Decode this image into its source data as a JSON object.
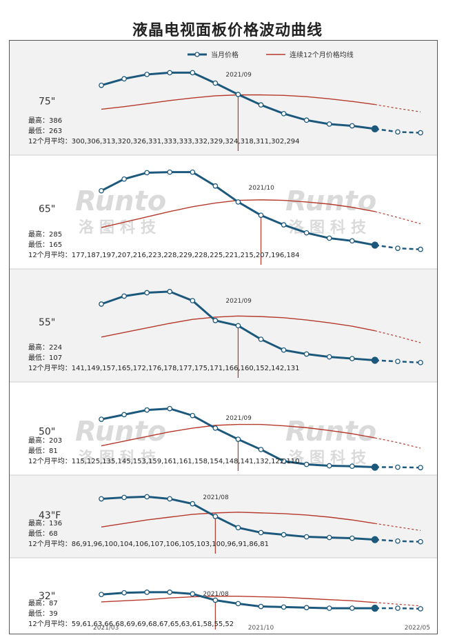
{
  "title": "液晶电视面板价格波动曲线",
  "legend": {
    "current": "当月价格",
    "avg": "连续12个月价格均线"
  },
  "colors": {
    "current": "#1b587c",
    "avg": "#b5382a",
    "marker_line": "#b5382a",
    "band_grey": "#f2f2f2",
    "band_white": "#ffffff"
  },
  "watermark": {
    "logo": "Runto",
    "cn": "洛图科技"
  },
  "stat_labels": {
    "high": "最高：",
    "low": "最低：",
    "avg": "12个月平均："
  },
  "chart_data": {
    "type": "line",
    "x": [
      "2021/03",
      "2021/04",
      "2021/05",
      "2021/06",
      "2021/07",
      "2021/08",
      "2021/09",
      "2021/10",
      "2021/11",
      "2021/12",
      "2022/01",
      "2022/02",
      "2022/03",
      "2022/04",
      "2022/05"
    ],
    "x_tick_labels": [
      "2021/03",
      "2021/10",
      "2022/05"
    ],
    "forecast_start_index": 12,
    "panels": [
      {
        "size": "75\"",
        "high": "386",
        "low": "263",
        "avg12": [
          300,
          306,
          313,
          320,
          326,
          331,
          333,
          333,
          332,
          329,
          324,
          318,
          311,
          302,
          294
        ],
        "marker_label": "2021/09",
        "marker_index": 6,
        "current": [
          355,
          370,
          380,
          384,
          384,
          360,
          334,
          310,
          290,
          275,
          266,
          262,
          255,
          248,
          246
        ],
        "ylim": [
          220,
          410
        ]
      },
      {
        "size": "65\"",
        "high": "285",
        "low": "165",
        "avg12": [
          177,
          187,
          197,
          207,
          216,
          223,
          228,
          229,
          228,
          225,
          221,
          215,
          207,
          196,
          184
        ],
        "marker_label": "2021/10",
        "marker_index": 7,
        "current": [
          246,
          268,
          280,
          281,
          281,
          255,
          225,
          200,
          182,
          167,
          157,
          152,
          144,
          138,
          136
        ],
        "ylim": [
          120,
          300
        ]
      },
      {
        "size": "55\"",
        "high": "224",
        "low": "107",
        "avg12": [
          141,
          149,
          157,
          165,
          172,
          176,
          178,
          177,
          175,
          171,
          166,
          160,
          152,
          142,
          131
        ],
        "marker_label": "2021/09",
        "marker_index": 6,
        "current": [
          199,
          213,
          219,
          221,
          205,
          170,
          161,
          137,
          118,
          111,
          106,
          103,
          100,
          98,
          96
        ],
        "ylim": [
          80,
          250
        ]
      },
      {
        "size": "50\"",
        "high": "203",
        "low": "81",
        "avg12": [
          115,
          125,
          135,
          145,
          153,
          159,
          161,
          161,
          158,
          154,
          148,
          141,
          132,
          122,
          110
        ],
        "marker_label": "2021/09",
        "marker_index": 6,
        "current": [
          172,
          182,
          192,
          195,
          180,
          153,
          129,
          107,
          82,
          75,
          72,
          71,
          69,
          69,
          68
        ],
        "ylim": [
          55,
          230
        ]
      },
      {
        "size": "43\"F",
        "high": "136",
        "low": "68",
        "avg12": [
          86,
          91,
          96,
          100,
          104,
          106,
          107,
          106,
          105,
          103,
          100,
          96,
          91,
          86,
          81
        ],
        "marker_label": "2021/08",
        "marker_index": 5,
        "current": [
          126,
          128,
          129,
          126,
          119,
          101,
          85,
          78,
          75,
          72,
          71,
          70,
          68,
          66,
          65
        ],
        "ylim": [
          50,
          150
        ]
      },
      {
        "size": "32\"",
        "high": "87",
        "low": "39",
        "avg12": [
          59,
          61,
          63,
          66,
          68,
          69,
          69,
          68,
          67,
          65,
          63,
          61,
          58,
          55,
          52
        ],
        "marker_label": "2021/08",
        "marker_index": 5,
        "current": [
          72,
          75,
          76,
          76,
          73,
          62,
          56,
          51,
          50,
          49,
          48,
          48,
          48,
          48,
          47
        ],
        "ylim": [
          30,
          100
        ]
      }
    ]
  }
}
